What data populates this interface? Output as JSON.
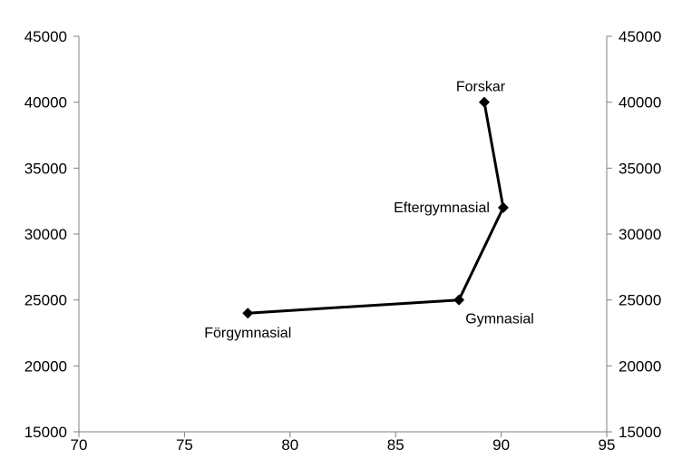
{
  "chart_data": {
    "type": "line",
    "title": "",
    "xlabel": "",
    "ylabel": "",
    "xlim": [
      70,
      95
    ],
    "ylim": [
      15000,
      45000
    ],
    "x_ticks": [
      70,
      75,
      80,
      85,
      90,
      95
    ],
    "y_ticks": [
      15000,
      20000,
      25000,
      30000,
      35000,
      40000,
      45000
    ],
    "grid": false,
    "legend": "none",
    "series_color": "#000000",
    "points": [
      {
        "label": "Förgymnasial",
        "x": 78.0,
        "y": 24000,
        "label_pos": "below"
      },
      {
        "label": "Gymnasial",
        "x": 88.0,
        "y": 25000,
        "label_pos": "below-right"
      },
      {
        "label": "Eftergymnasial",
        "x": 90.1,
        "y": 32000,
        "label_pos": "left"
      },
      {
        "label": "Forskar",
        "x": 89.2,
        "y": 40000,
        "label_pos": "above"
      }
    ]
  }
}
